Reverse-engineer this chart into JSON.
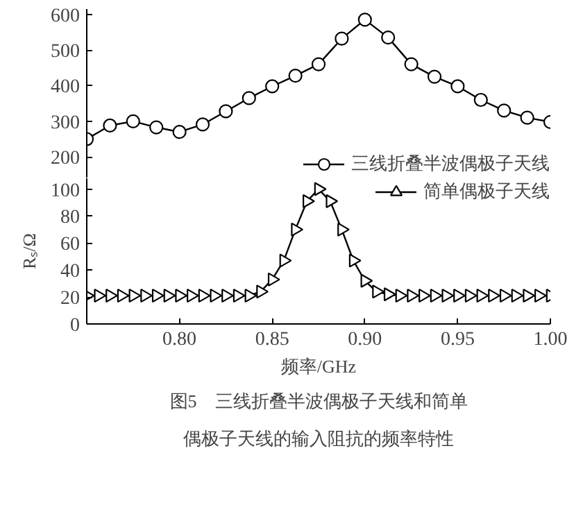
{
  "chart_data": [
    {
      "type": "line",
      "x": [
        0.75,
        0.7625,
        0.775,
        0.7875,
        0.8,
        0.8125,
        0.825,
        0.8375,
        0.85,
        0.8625,
        0.875,
        0.8875,
        0.9,
        0.9125,
        0.925,
        0.9375,
        0.95,
        0.9625,
        0.975,
        0.9875,
        1.0
      ],
      "series": [
        {
          "name": "三线折叠半波偶极子天线",
          "color": "#000000",
          "marker": "circle",
          "values": [
            250,
            288,
            300,
            283,
            270,
            291,
            328,
            365,
            398,
            428,
            460,
            532,
            585,
            535,
            460,
            425,
            398,
            360,
            330,
            310,
            298
          ]
        }
      ],
      "xlim": [
        0.75,
        1.0
      ],
      "ylim": [
        140,
        615
      ],
      "yticks": [
        200,
        300,
        400,
        500,
        600
      ],
      "tick_labels": "y",
      "grid": false,
      "legend": "bottom right"
    },
    {
      "type": "line",
      "x": [
        0.75,
        0.75625,
        0.7625,
        0.76875,
        0.775,
        0.78125,
        0.7875,
        0.79375,
        0.8,
        0.80625,
        0.8125,
        0.81875,
        0.825,
        0.83125,
        0.8375,
        0.84375,
        0.85,
        0.85625,
        0.8625,
        0.86875,
        0.875,
        0.88125,
        0.8875,
        0.89375,
        0.9,
        0.90625,
        0.9125,
        0.91875,
        0.925,
        0.93125,
        0.9375,
        0.94375,
        0.95,
        0.95625,
        0.9625,
        0.96875,
        0.975,
        0.98125,
        0.9875,
        0.99375,
        1.0
      ],
      "series": [
        {
          "name": "简单偶极子天线",
          "color": "#000000",
          "marker": "triangle",
          "values": [
            21,
            21,
            21,
            21,
            21,
            21,
            21,
            21,
            21,
            21,
            21,
            21,
            21,
            21,
            21,
            24,
            33,
            47,
            70,
            91,
            100,
            91,
            70,
            47,
            32,
            24,
            22,
            21,
            21,
            21,
            21,
            21,
            21,
            21,
            21,
            21,
            21,
            21,
            21,
            21,
            21
          ]
        }
      ],
      "xlim": [
        0.75,
        1.0
      ],
      "xticks": [
        {
          "value": 0.8,
          "label": "0.80"
        },
        {
          "value": 0.85,
          "label": "0.85"
        },
        {
          "value": 0.9,
          "label": "0.90"
        },
        {
          "value": 0.95,
          "label": "0.95"
        },
        {
          "value": 1.0,
          "label": "1.00"
        }
      ],
      "ylim": [
        0,
        108
      ],
      "yticks": [
        0,
        20,
        40,
        60,
        80,
        100
      ],
      "grid": false,
      "legend": "top right",
      "xlabel": "频率/GHz",
      "ylabel": "Rₛ/Ω",
      "annotations": [
        "图5　三线折叠半波偶极子天线和简单",
        "偶极子天线的输入阻抗的频率特性"
      ]
    }
  ]
}
